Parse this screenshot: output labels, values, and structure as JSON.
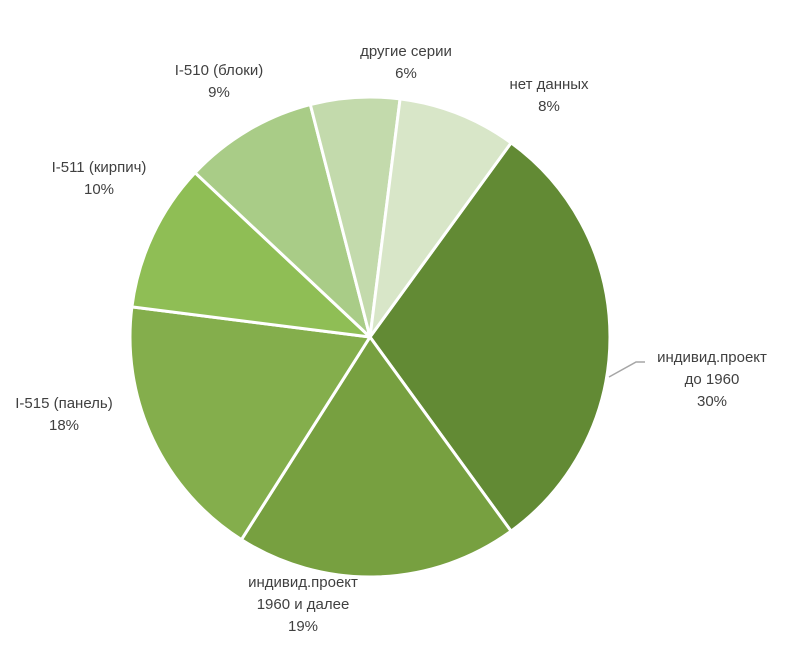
{
  "chart_data": {
    "type": "pie",
    "title": "",
    "slices": [
      {
        "label_lines": [
          "индивид.проект",
          "до 1960"
        ],
        "percent_label": "30%",
        "value": 30,
        "color": "#628a34"
      },
      {
        "label_lines": [
          "индивид.проект",
          "1960 и далее"
        ],
        "percent_label": "19%",
        "value": 19,
        "color": "#77a040"
      },
      {
        "label_lines": [
          "I-515 (панель)"
        ],
        "percent_label": "18%",
        "value": 18,
        "color": "#84ae4c"
      },
      {
        "label_lines": [
          "I-511 (кирпич)"
        ],
        "percent_label": "10%",
        "value": 10,
        "color": "#8fbe55"
      },
      {
        "label_lines": [
          "I-510 (блоки)"
        ],
        "percent_label": "9%",
        "value": 9,
        "color": "#a9cc87"
      },
      {
        "label_lines": [
          "другие серии"
        ],
        "percent_label": "6%",
        "value": 6,
        "color": "#c3daac"
      },
      {
        "label_lines": [
          "нет данных"
        ],
        "percent_label": "8%",
        "value": 8,
        "color": "#d8e6c8"
      }
    ],
    "legend": "none",
    "leader_line_color": "#a6a6a6"
  }
}
